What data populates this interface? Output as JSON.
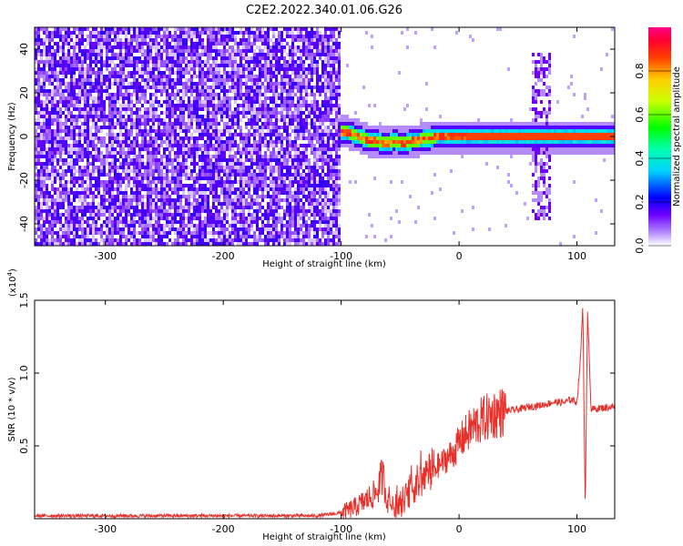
{
  "title": "C2E2.2022.340.01.06.G26",
  "chart_data": [
    {
      "type": "heatmap",
      "xlabel": "Height of straight line (km)",
      "ylabel": "Frequency (Hz)",
      "xlim": [
        -360,
        132
      ],
      "ylim": [
        -50,
        50
      ],
      "x_ticks": [
        -300,
        -200,
        -100,
        0,
        100
      ],
      "y_ticks": [
        -40,
        -20,
        0,
        20,
        40
      ],
      "colorbar": {
        "label": "Normalized spectral amplitude",
        "range": [
          0.0,
          1.0
        ],
        "ticks": [
          "0.0",
          "0.2",
          "0.4",
          "0.6",
          "0.8"
        ],
        "colormap": [
          "#ffffff",
          "#6f00ff",
          "#0000ff",
          "#00ffff",
          "#00ff00",
          "#ffff00",
          "#ff0000",
          "#ff0088"
        ]
      },
      "ridge_frequency": {
        "x": [
          -100,
          -95,
          -90,
          -85,
          -80,
          -75,
          -70,
          -65,
          -60,
          -55,
          -50,
          -45,
          -40,
          -35,
          -30,
          -25,
          -20,
          -15,
          -10,
          -5,
          0,
          20,
          40,
          60,
          70,
          80,
          90,
          100,
          110,
          120,
          132
        ],
        "y": [
          2,
          2,
          1,
          0,
          -1,
          -2,
          -2,
          -3,
          -3,
          -2,
          -3,
          -3,
          -2,
          -2,
          -1,
          -1,
          0,
          0,
          0,
          0,
          0,
          0,
          0,
          0,
          0,
          0,
          0,
          0,
          0,
          0,
          0
        ]
      },
      "noise_region_x": [
        -360,
        -100
      ],
      "bursts_x": [
        65,
        75
      ]
    },
    {
      "type": "line",
      "xlabel": "Height of straight line (km)",
      "ylabel": "SNR (10 * v/v)",
      "y_multiplier": "(x10^4)",
      "xlim": [
        -360,
        132
      ],
      "ylim": [
        0,
        1.5
      ],
      "x_ticks": [
        -300,
        -200,
        -100,
        0,
        100
      ],
      "y_ticks": [
        "0.5",
        "1.0",
        "1.5"
      ],
      "color": "#e8302a",
      "series": [
        {
          "x": [
            -360,
            -300,
            -200,
            -120,
            -100,
            -90,
            -80,
            -70,
            -65,
            -60,
            -55,
            -50,
            -45,
            -40,
            -35,
            -30,
            -25,
            -20,
            -15,
            -10,
            -5,
            0,
            10,
            20,
            30,
            40,
            50,
            60,
            70,
            80,
            90,
            95,
            100,
            103,
            105,
            107,
            109,
            112,
            120,
            132
          ],
          "values": [
            0.02,
            0.02,
            0.02,
            0.02,
            0.04,
            0.07,
            0.12,
            0.18,
            0.3,
            0.1,
            0.08,
            0.06,
            0.15,
            0.2,
            0.25,
            0.28,
            0.32,
            0.35,
            0.38,
            0.42,
            0.45,
            0.52,
            0.62,
            0.68,
            0.72,
            0.74,
            0.75,
            0.77,
            0.78,
            0.8,
            0.8,
            0.82,
            0.8,
            1.1,
            1.48,
            0.05,
            1.44,
            0.75,
            0.76,
            0.77
          ]
        }
      ]
    }
  ]
}
